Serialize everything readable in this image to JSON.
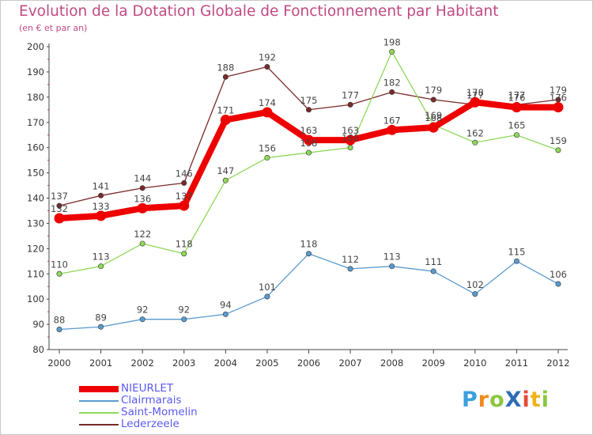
{
  "title": "Evolution de la Dotation Globale de Fonctionnement par Habitant",
  "subtitle": "(en € et par an)",
  "logo": {
    "text": "ProXiti",
    "letters": [
      "P",
      "r",
      "o",
      "X",
      "i",
      "t",
      "i"
    ],
    "colors": [
      "#3aa0e0",
      "#f08a1a",
      "#8cc63f",
      "#2f6db5",
      "#e34a3b",
      "#f0b21a",
      "#8cc63f"
    ]
  },
  "chart_data": {
    "type": "line",
    "title": "Evolution de la Dotation Globale de Fonctionnement par Habitant",
    "subtitle": "(en € et par an)",
    "xlabel": "",
    "ylabel": "",
    "x": [
      "2000",
      "2001",
      "2002",
      "2003",
      "2004",
      "2005",
      "2006",
      "2007",
      "2008",
      "2009",
      "2010",
      "2011",
      "2012"
    ],
    "yticks": [
      "80",
      "90",
      "100",
      "110",
      "120",
      "130",
      "140",
      "150",
      "160",
      "170",
      "180",
      "190",
      "200"
    ],
    "ylim": [
      80,
      200
    ],
    "grid": false,
    "legend_position": "bottom-left",
    "series": [
      {
        "name": "NIEURLET",
        "color": "#ee0000",
        "thick": true,
        "label_offset": 1,
        "values": [
          132,
          133,
          136,
          137,
          171,
          174,
          163,
          163,
          167,
          168,
          178,
          176,
          176
        ]
      },
      {
        "name": "Clairmarais",
        "color": "#5a9bd0",
        "thick": false,
        "label_offset": 1,
        "values": [
          88,
          89,
          92,
          92,
          94,
          101,
          118,
          112,
          113,
          111,
          102,
          115,
          106
        ]
      },
      {
        "name": "Saint-Momelin",
        "color": "#8fd85a",
        "thick": false,
        "label_offset": 1,
        "values": [
          110,
          113,
          122,
          118,
          147,
          156,
          158,
          160,
          198,
          169,
          162,
          165,
          159
        ]
      },
      {
        "name": "Lederzeele",
        "color": "#7a2a2a",
        "thick": false,
        "label_offset": 1,
        "values": [
          137,
          141,
          144,
          146,
          188,
          192,
          175,
          177,
          182,
          179,
          177,
          177,
          179
        ]
      }
    ]
  }
}
